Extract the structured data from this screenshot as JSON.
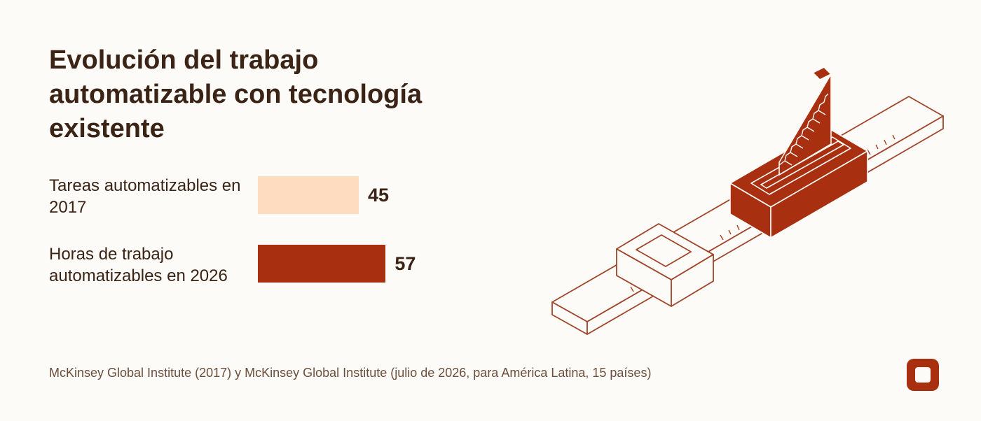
{
  "title": "Evolución del trabajo automatizable con tecnología existente",
  "chart_data": {
    "type": "bar",
    "orientation": "horizontal",
    "categories": [
      "Tareas automatizables en 2017",
      "Horas de trabajo automatizables en 2026"
    ],
    "values": [
      45,
      57
    ],
    "value_labels": [
      "45",
      "57"
    ],
    "colors": [
      "#fddcc0",
      "#a83010"
    ],
    "xlim": [
      0,
      100
    ],
    "grid": false
  },
  "source": "McKinsey Global Institute (2017) y McKinsey Global Institute (julio de 2026, para América Latina, 15 países)",
  "colors": {
    "background": "#fdfbf7",
    "text": "#3b2416",
    "accent": "#a83010",
    "light_bar": "#fddcc0"
  },
  "icons": {
    "illustration": "caliper-ruler-illustration",
    "brand": "rounded-square-logo-icon"
  }
}
